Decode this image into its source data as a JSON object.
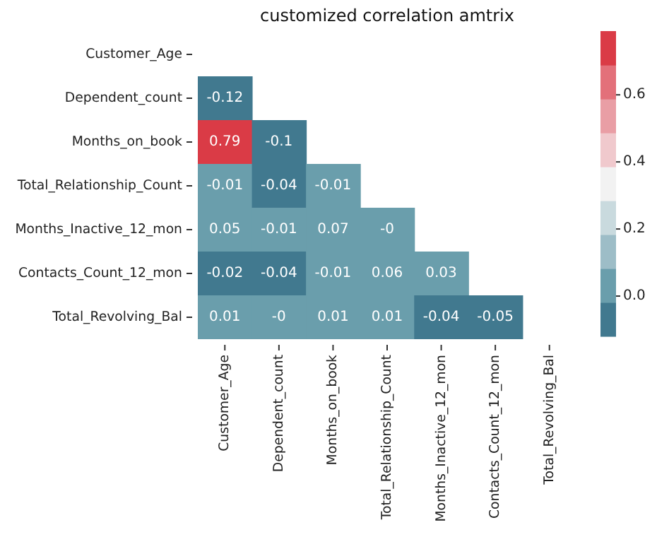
{
  "chart_data": {
    "type": "heatmap",
    "title": "customized correlation amtrix",
    "categories": [
      "Customer_Age",
      "Dependent_count",
      "Months_on_book",
      "Total_Relationship_Count",
      "Months_Inactive_12_mon",
      "Contacts_Count_12_mon",
      "Total_Revolving_Bal"
    ],
    "y_categories": [
      "Customer_Age",
      "Dependent_count",
      "Months_on_book",
      "Total_Relationship_Count",
      "Months_Inactive_12_mon",
      "Contacts_Count_12_mon",
      "Total_Revolving_Bal"
    ],
    "cells": [
      [
        null,
        null,
        null,
        null,
        null,
        null,
        null
      ],
      [
        -0.12,
        null,
        null,
        null,
        null,
        null,
        null
      ],
      [
        0.79,
        -0.1,
        null,
        null,
        null,
        null,
        null
      ],
      [
        -0.01,
        -0.04,
        -0.01,
        null,
        null,
        null,
        null
      ],
      [
        0.05,
        -0.01,
        0.07,
        0,
        null,
        null,
        null
      ],
      [
        -0.02,
        -0.04,
        -0.01,
        0.06,
        0.03,
        null,
        null
      ],
      [
        0.01,
        0,
        0.01,
        0.01,
        -0.04,
        -0.05,
        null
      ]
    ],
    "cell_labels": [
      [
        null,
        null,
        null,
        null,
        null,
        null,
        null
      ],
      [
        "-0.12",
        null,
        null,
        null,
        null,
        null,
        null
      ],
      [
        "0.79",
        "-0.1",
        null,
        null,
        null,
        null,
        null
      ],
      [
        "-0.01",
        "-0.04",
        "-0.01",
        null,
        null,
        null,
        null
      ],
      [
        "0.05",
        "-0.01",
        "0.07",
        "-0",
        null,
        null,
        null
      ],
      [
        "-0.02",
        "-0.04",
        "-0.01",
        "0.06",
        "0.03",
        null,
        null
      ],
      [
        "0.01",
        "-0",
        "0.01",
        "0.01",
        "-0.04",
        "-0.05",
        null
      ]
    ],
    "clim": [
      -0.12,
      0.79
    ],
    "cticks": [
      {
        "value": 0,
        "label": "0.0"
      },
      {
        "value": 0.2,
        "label": "0.2"
      },
      {
        "value": 0.4,
        "label": "0.4"
      },
      {
        "value": 0.6,
        "label": "0.6"
      }
    ],
    "colors": [
      "#41798f",
      "#6a9eac",
      "#9dbdc7",
      "#c9dade",
      "#f2f2f2",
      "#f0c9cd",
      "#e99ea5",
      "#e3707a",
      "#da3b46"
    ]
  }
}
